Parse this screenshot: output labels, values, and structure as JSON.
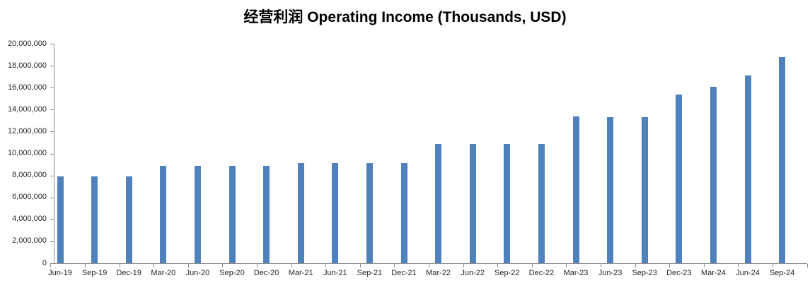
{
  "title": "经营利润 Operating Income (Thousands, USD)",
  "chart_data": {
    "type": "bar",
    "title": "经营利润 Operating Income (Thousands, USD)",
    "categories": [
      "Jun-19",
      "Sep-19",
      "Dec-19",
      "Mar-20",
      "Jun-20",
      "Sep-20",
      "Dec-20",
      "Mar-21",
      "Jun-21",
      "Sep-21",
      "Dec-21",
      "Mar-22",
      "Jun-22",
      "Sep-22",
      "Dec-22",
      "Mar-23",
      "Jun-23",
      "Sep-23",
      "Dec-23",
      "Mar-24",
      "Jun-24",
      "Sep-24"
    ],
    "values": [
      7900000,
      7900000,
      7900000,
      8900000,
      8900000,
      8900000,
      8900000,
      9100000,
      9100000,
      9100000,
      9100000,
      10900000,
      10900000,
      10900000,
      10900000,
      13350000,
      13300000,
      13300000,
      15400000,
      16050000,
      17100000,
      18800000
    ],
    "xlabel": "",
    "ylabel": "",
    "ylim": [
      0,
      20000000
    ],
    "ytick_step": 2000000,
    "ytick_labels": [
      "0",
      "2,000,000",
      "4,000,000",
      "6,000,000",
      "8,000,000",
      "10,000,000",
      "12,000,000",
      "14,000,000",
      "16,000,000",
      "18,000,000",
      "20,000,000"
    ],
    "grid": false,
    "legend": "none",
    "colors": {
      "bar": "#4F81BD",
      "axis": "#8E8E8E",
      "tick_label": "#262626",
      "title": "#000000",
      "background": "#FFFFFF"
    }
  }
}
